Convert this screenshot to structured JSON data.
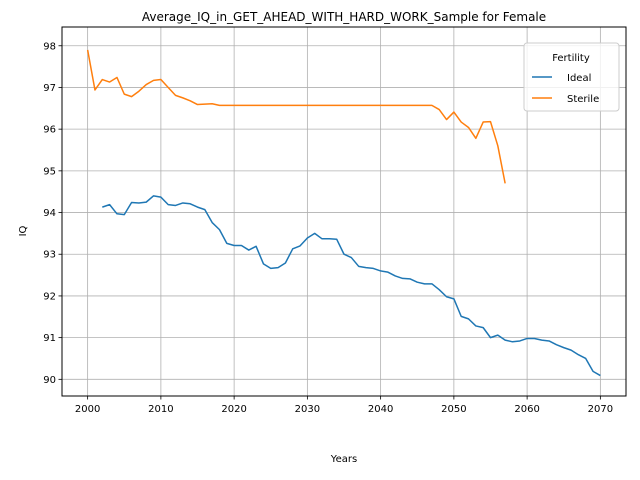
{
  "chart_data": {
    "type": "line",
    "title": "Average_IQ_in_GET_AHEAD_WITH_HARD_WORK_Sample for Female",
    "xlabel": "Years",
    "ylabel": "IQ",
    "xlim": [
      1996.5,
      2073.5
    ],
    "ylim": [
      89.6,
      98.45
    ],
    "xticks": [
      2000,
      2010,
      2020,
      2030,
      2040,
      2050,
      2060,
      2070
    ],
    "yticks": [
      90,
      91,
      92,
      93,
      94,
      95,
      96,
      97,
      98
    ],
    "grid": true,
    "legend": {
      "title": "Fertility",
      "placement": "top-right"
    },
    "series": [
      {
        "name": "Ideal",
        "color": "#1f77b4",
        "x": [
          2002,
          2003,
          2004,
          2005,
          2006,
          2007,
          2008,
          2009,
          2010,
          2011,
          2012,
          2013,
          2014,
          2015,
          2016,
          2017,
          2018,
          2019,
          2020,
          2021,
          2022,
          2023,
          2024,
          2025,
          2026,
          2027,
          2028,
          2029,
          2030,
          2031,
          2032,
          2033,
          2034,
          2035,
          2036,
          2037,
          2038,
          2039,
          2040,
          2041,
          2042,
          2043,
          2044,
          2045,
          2046,
          2047,
          2048,
          2049,
          2050,
          2051,
          2052,
          2053,
          2054,
          2055,
          2056,
          2057,
          2058,
          2059,
          2060,
          2061,
          2062,
          2063,
          2064,
          2065,
          2066,
          2067,
          2068,
          2069,
          2070
        ],
        "y": [
          94.13,
          94.19,
          93.97,
          93.95,
          94.24,
          94.23,
          94.25,
          94.4,
          94.37,
          94.19,
          94.17,
          94.23,
          94.21,
          94.13,
          94.07,
          93.76,
          93.59,
          93.26,
          93.21,
          93.21,
          93.1,
          93.19,
          92.77,
          92.66,
          92.68,
          92.79,
          93.13,
          93.2,
          93.39,
          93.5,
          93.37,
          93.37,
          93.36,
          93.0,
          92.92,
          92.71,
          92.68,
          92.66,
          92.6,
          92.57,
          92.48,
          92.42,
          92.41,
          92.33,
          92.29,
          92.29,
          92.15,
          91.98,
          91.93,
          91.51,
          91.45,
          91.28,
          91.24,
          91.0,
          91.06,
          90.94,
          90.9,
          90.92,
          90.98,
          90.98,
          90.94,
          90.92,
          90.83,
          90.76,
          90.7,
          90.59,
          90.5,
          90.19,
          90.09
        ]
      },
      {
        "name": "Sterile",
        "color": "#ff7f0e",
        "x": [
          2000,
          2001,
          2002,
          2003,
          2004,
          2005,
          2006,
          2007,
          2008,
          2009,
          2010,
          2011,
          2012,
          2013,
          2014,
          2015,
          2016,
          2017,
          2018,
          2019,
          2020,
          2021,
          2022,
          2023,
          2024,
          2025,
          2026,
          2027,
          2028,
          2029,
          2030,
          2031,
          2032,
          2033,
          2034,
          2035,
          2036,
          2037,
          2038,
          2039,
          2040,
          2041,
          2042,
          2043,
          2044,
          2045,
          2046,
          2047,
          2048,
          2049,
          2050,
          2051,
          2052,
          2053,
          2054,
          2055,
          2056,
          2057
        ],
        "y": [
          97.9,
          96.94,
          97.19,
          97.13,
          97.24,
          96.84,
          96.78,
          96.91,
          97.07,
          97.17,
          97.19,
          97.0,
          96.81,
          96.75,
          96.68,
          96.59,
          96.6,
          96.61,
          96.57,
          96.57,
          96.57,
          96.57,
          96.57,
          96.57,
          96.57,
          96.57,
          96.57,
          96.57,
          96.57,
          96.57,
          96.57,
          96.57,
          96.57,
          96.57,
          96.57,
          96.57,
          96.57,
          96.57,
          96.57,
          96.57,
          96.57,
          96.57,
          96.57,
          96.57,
          96.57,
          96.57,
          96.57,
          96.57,
          96.47,
          96.23,
          96.41,
          96.17,
          96.04,
          95.78,
          96.17,
          96.18,
          95.6,
          94.7
        ]
      }
    ]
  }
}
